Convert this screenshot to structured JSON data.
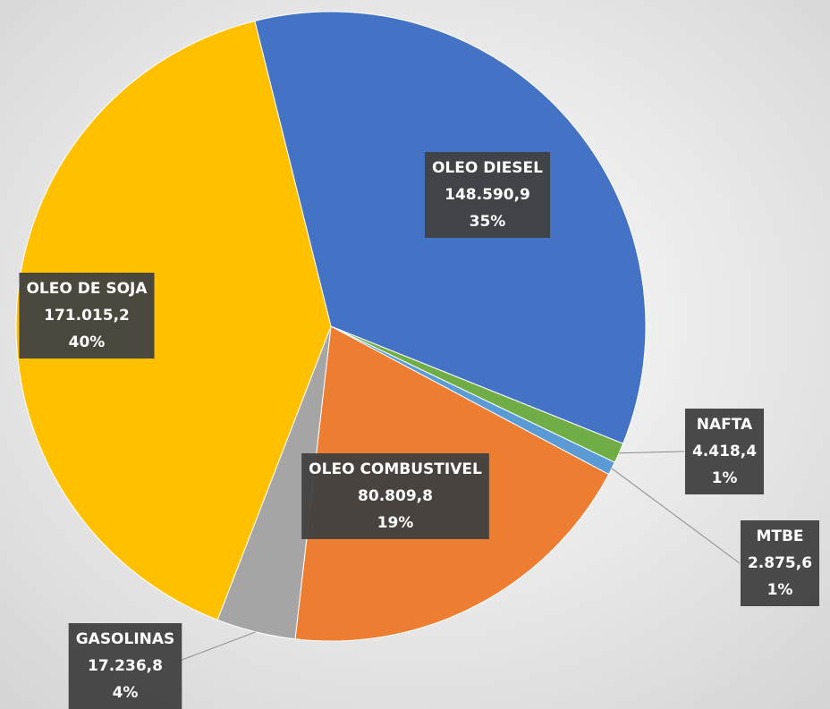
{
  "chart_data": {
    "type": "pie",
    "categories": [
      "OLEO DIESEL",
      "NAFTA",
      "MTBE",
      "OLEO COMBUSTIVEL",
      "GASOLINAS",
      "OLEO DE SOJA"
    ],
    "values": [
      148590.9,
      4418.4,
      2875.6,
      80809.8,
      17236.8,
      171015.2
    ],
    "value_labels": [
      "148.590,9",
      "4.418,4",
      "2.875,6",
      "80.809,8",
      "17.236,8",
      "171.015,2"
    ],
    "percent_labels": [
      "35%",
      "1%",
      "1%",
      "19%",
      "4%",
      "40%"
    ],
    "colors": [
      "#4472c4",
      "#70ad47",
      "#5b9bd5",
      "#ed7d31",
      "#a5a5a5",
      "#ffc000"
    ]
  }
}
